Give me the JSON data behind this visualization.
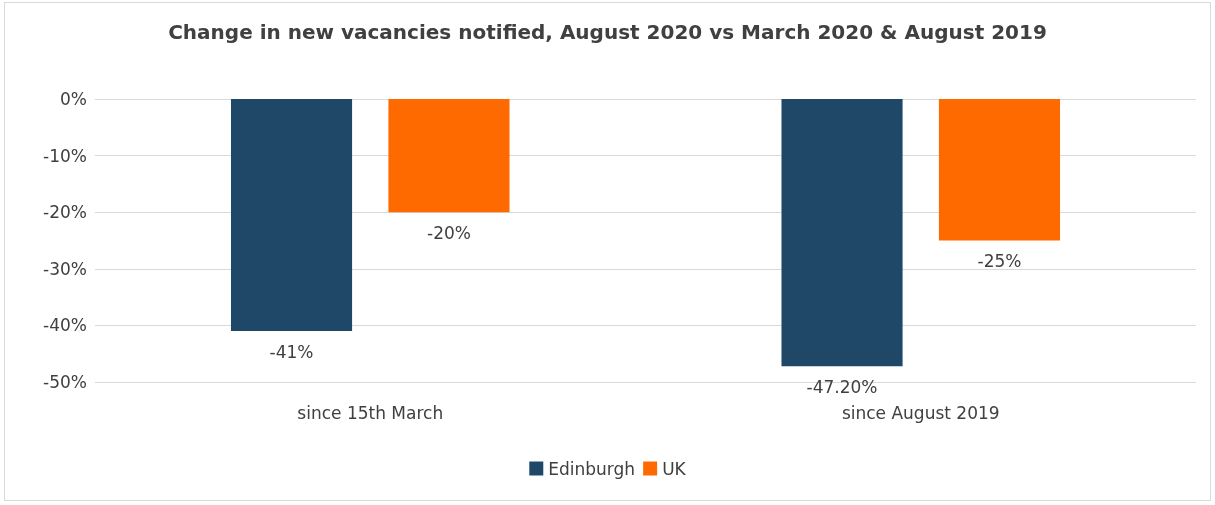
{
  "chart_data": {
    "type": "bar",
    "title": "Change in new vacancies notified, August 2020 vs March 2020 & August 2019",
    "categories": [
      "since 15th March",
      "since August 2019"
    ],
    "series": [
      {
        "name": "Edinburgh",
        "color": "#1f4868",
        "values": [
          -41,
          -47.2
        ],
        "value_labels": [
          "-41%",
          "-47.20%"
        ]
      },
      {
        "name": "UK",
        "color": "#ff6a00",
        "values": [
          -20,
          -25
        ],
        "value_labels": [
          "-20%",
          "-25%"
        ]
      }
    ],
    "ylim": [
      -50,
      0
    ],
    "yticks": [
      {
        "value": 0,
        "label": "0%"
      },
      {
        "value": -10,
        "label": "-10%"
      },
      {
        "value": -20,
        "label": "-20%"
      },
      {
        "value": -30,
        "label": "-30%"
      },
      {
        "value": -40,
        "label": "-40%"
      },
      {
        "value": -50,
        "label": "-50%"
      }
    ],
    "grid": "y",
    "legend": "bottom"
  }
}
